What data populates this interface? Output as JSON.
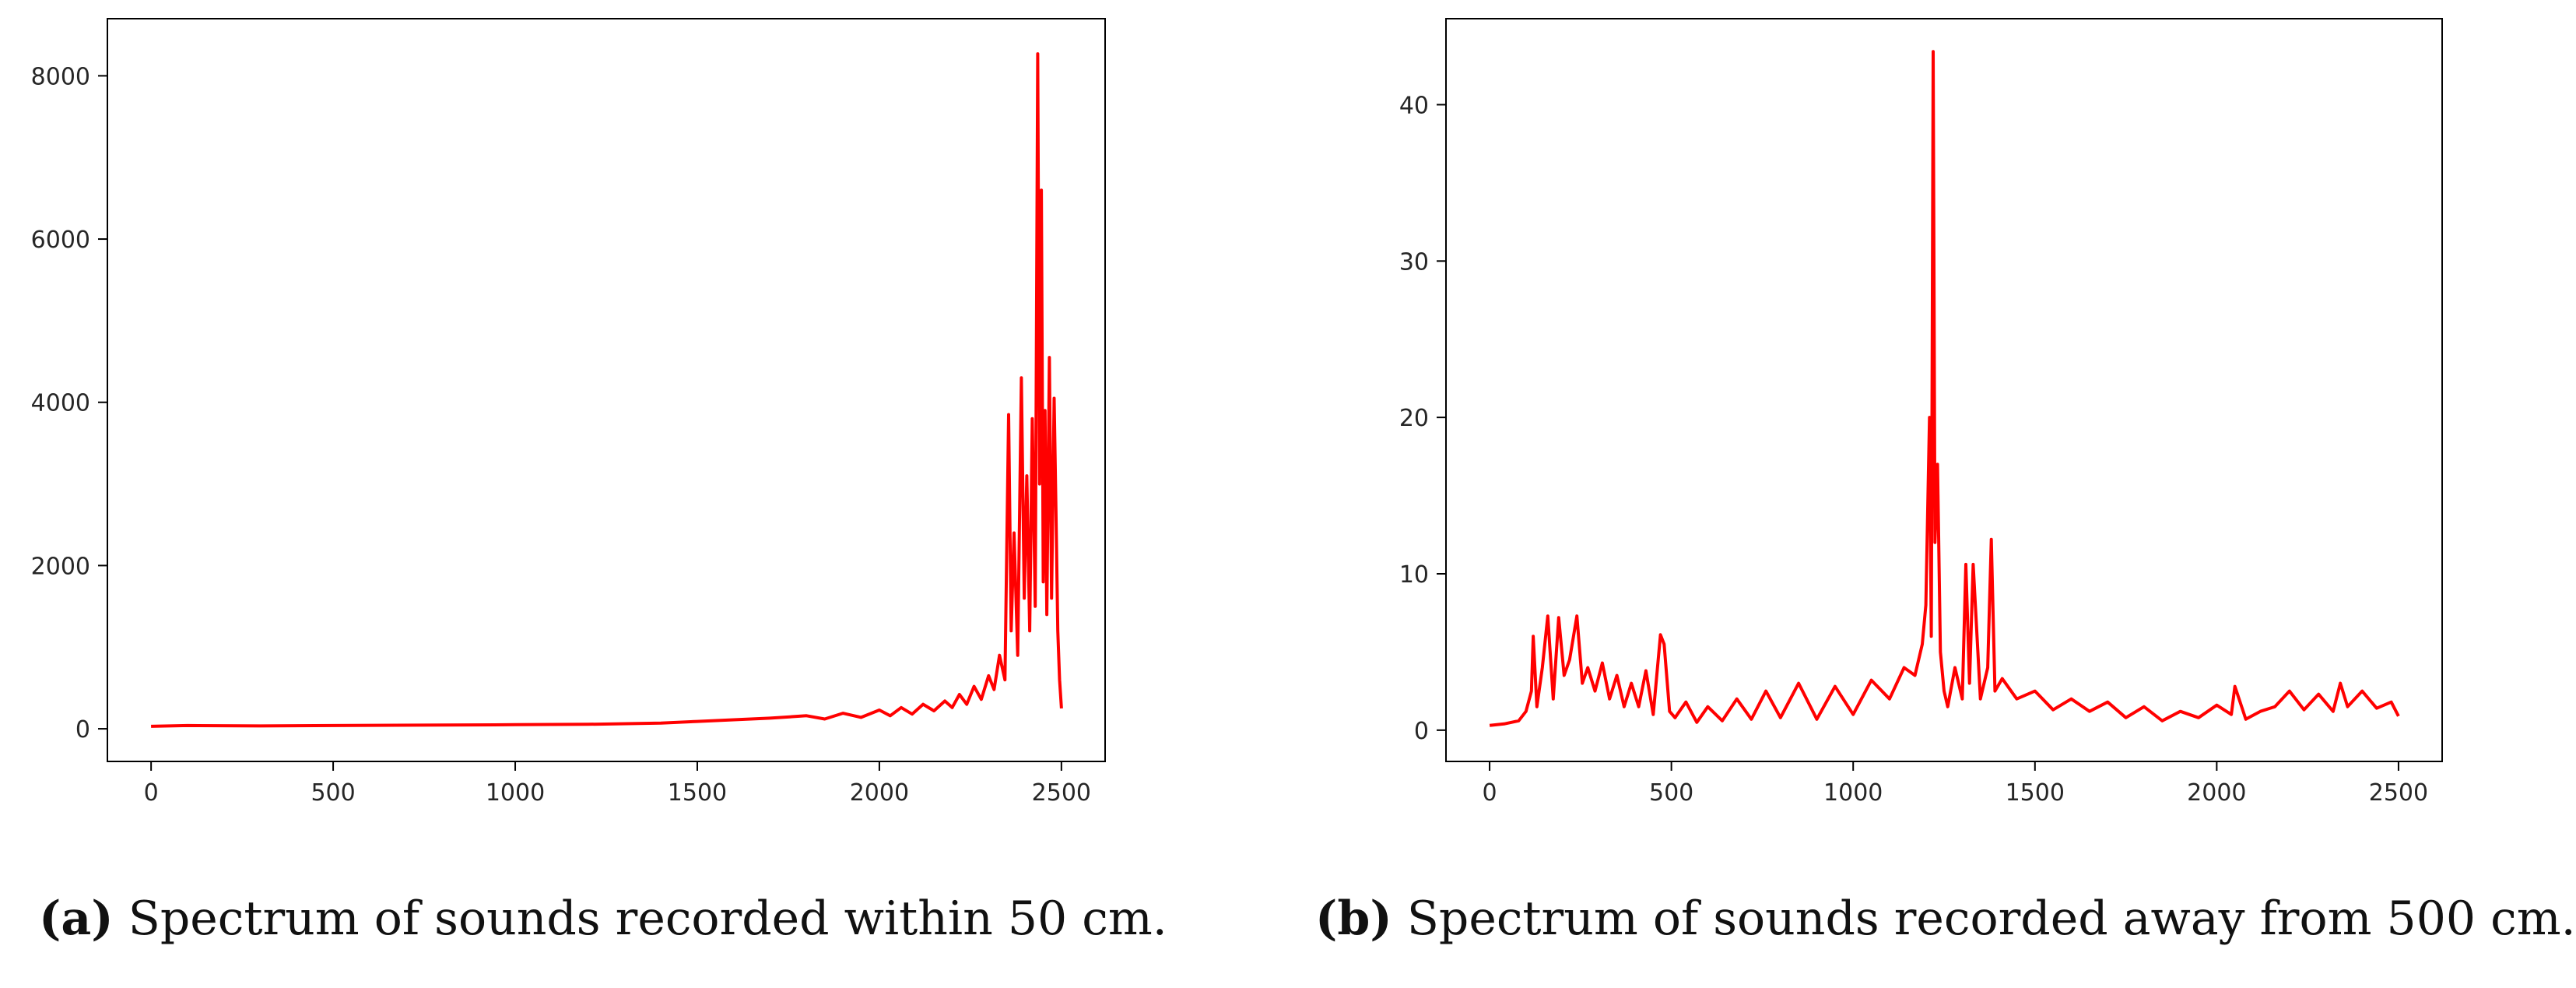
{
  "chart_data": [
    {
      "id": "a",
      "type": "line",
      "title": "",
      "xlabel": "",
      "ylabel": "",
      "xlim": [
        -120,
        2620
      ],
      "ylim": [
        -400,
        8700
      ],
      "x_ticks": [
        0,
        500,
        1000,
        1500,
        2000,
        2500
      ],
      "y_ticks": [
        0,
        2000,
        4000,
        6000,
        8000
      ],
      "line_color": "#ff0000",
      "grid": false,
      "series": [
        {
          "name": "spectrum",
          "x": [
            0,
            100,
            300,
            500,
            800,
            1000,
            1200,
            1400,
            1500,
            1600,
            1700,
            1800,
            1850,
            1900,
            1950,
            2000,
            2030,
            2060,
            2090,
            2120,
            2150,
            2180,
            2200,
            2220,
            2240,
            2260,
            2280,
            2300,
            2315,
            2330,
            2345,
            2355,
            2362,
            2370,
            2380,
            2390,
            2398,
            2405,
            2413,
            2420,
            2428,
            2435,
            2440,
            2445,
            2450,
            2455,
            2460,
            2467,
            2473,
            2480,
            2485,
            2490,
            2495,
            2500
          ],
          "y": [
            30,
            40,
            35,
            40,
            45,
            50,
            55,
            70,
            90,
            110,
            130,
            160,
            120,
            190,
            140,
            230,
            160,
            260,
            180,
            300,
            220,
            340,
            260,
            420,
            300,
            520,
            360,
            650,
            480,
            900,
            600,
            3850,
            1200,
            2400,
            900,
            4300,
            1600,
            3100,
            1200,
            3800,
            1500,
            8270,
            3000,
            6600,
            1800,
            3900,
            1400,
            4550,
            1600,
            4050,
            2700,
            1200,
            600,
            250
          ]
        }
      ]
    },
    {
      "id": "b",
      "type": "line",
      "title": "",
      "xlabel": "",
      "ylabel": "",
      "xlim": [
        -120,
        2620
      ],
      "ylim": [
        -2,
        45.5
      ],
      "x_ticks": [
        0,
        500,
        1000,
        1500,
        2000,
        2500
      ],
      "y_ticks": [
        0,
        10,
        20,
        30,
        40
      ],
      "line_color": "#ff0000",
      "grid": false,
      "series": [
        {
          "name": "spectrum",
          "x": [
            0,
            40,
            80,
            100,
            115,
            120,
            130,
            145,
            160,
            175,
            190,
            205,
            220,
            240,
            255,
            270,
            290,
            310,
            330,
            350,
            370,
            390,
            410,
            430,
            450,
            470,
            480,
            495,
            510,
            540,
            570,
            600,
            640,
            680,
            720,
            760,
            800,
            850,
            900,
            950,
            1000,
            1050,
            1100,
            1140,
            1170,
            1190,
            1200,
            1210,
            1215,
            1220,
            1225,
            1232,
            1240,
            1250,
            1260,
            1280,
            1300,
            1310,
            1320,
            1330,
            1350,
            1370,
            1380,
            1390,
            1410,
            1450,
            1500,
            1550,
            1600,
            1650,
            1700,
            1750,
            1800,
            1850,
            1900,
            1950,
            2000,
            2040,
            2050,
            2080,
            2120,
            2160,
            2200,
            2240,
            2280,
            2320,
            2340,
            2360,
            2400,
            2440,
            2480,
            2500
          ],
          "y": [
            0.3,
            0.4,
            0.6,
            1.2,
            2.5,
            6.0,
            1.5,
            4.0,
            7.3,
            2.0,
            7.2,
            3.5,
            4.5,
            7.3,
            3.0,
            4.0,
            2.5,
            4.3,
            2.0,
            3.5,
            1.5,
            3.0,
            1.5,
            3.8,
            1.0,
            6.1,
            5.5,
            1.2,
            0.8,
            1.8,
            0.5,
            1.5,
            0.6,
            2.0,
            0.7,
            2.5,
            0.8,
            3.0,
            0.7,
            2.8,
            1.0,
            3.2,
            2.0,
            4.0,
            3.5,
            5.5,
            8.0,
            20.0,
            6.0,
            43.4,
            12.0,
            17.0,
            5.0,
            2.5,
            1.5,
            4.0,
            2.0,
            10.6,
            3.0,
            10.6,
            2.0,
            4.0,
            12.2,
            2.5,
            3.3,
            2.0,
            2.5,
            1.3,
            2.0,
            1.2,
            1.8,
            0.8,
            1.5,
            0.6,
            1.2,
            0.8,
            1.6,
            1.0,
            2.8,
            0.7,
            1.2,
            1.5,
            2.5,
            1.3,
            2.3,
            1.2,
            3.0,
            1.5,
            2.5,
            1.4,
            1.8,
            0.9
          ]
        }
      ]
    }
  ],
  "captions": {
    "a": {
      "label": "(a)",
      "text": "Spectrum of sounds recorded within 50 cm."
    },
    "b": {
      "label": "(b)",
      "text": "Spectrum of sounds recorded away from 500 cm."
    }
  }
}
